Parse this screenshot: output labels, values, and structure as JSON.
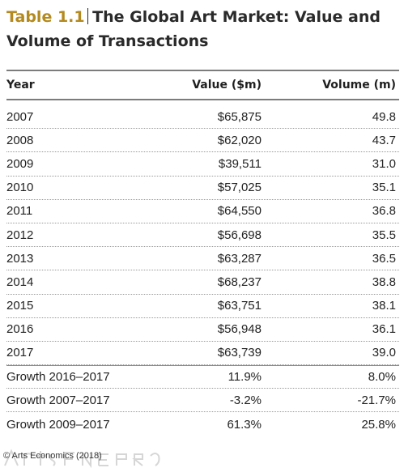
{
  "title": {
    "label": "Table 1.1",
    "text_line1": "The Global Art Market: Value and",
    "text_line2": "Volume of Transactions"
  },
  "columns": {
    "year": "Year",
    "value": "Value ($m)",
    "volume": "Volume (m)"
  },
  "rows": [
    {
      "year": "2007",
      "value": "$65,875",
      "volume": "49.8"
    },
    {
      "year": "2008",
      "value": "$62,020",
      "volume": "43.7"
    },
    {
      "year": "2009",
      "value": "$39,511",
      "volume": "31.0"
    },
    {
      "year": "2010",
      "value": "$57,025",
      "volume": "35.1"
    },
    {
      "year": "2011",
      "value": "$64,550",
      "volume": "36.8"
    },
    {
      "year": "2012",
      "value": "$56,698",
      "volume": "35.5"
    },
    {
      "year": "2013",
      "value": "$63,287",
      "volume": "36.5"
    },
    {
      "year": "2014",
      "value": "$68,237",
      "volume": "38.8"
    },
    {
      "year": "2015",
      "value": "$63,751",
      "volume": "38.1"
    },
    {
      "year": "2016",
      "value": "$56,948",
      "volume": "36.1"
    },
    {
      "year": "2017",
      "value": "$63,739",
      "volume": "39.0"
    }
  ],
  "growth_rows": [
    {
      "year": "Growth 2016–2017",
      "value": "11.9%",
      "volume": "8.0%"
    },
    {
      "year": "Growth 2007–2017",
      "value": "-3.2%",
      "volume": "-21.7%"
    },
    {
      "year": "Growth 2009–2017",
      "value": "61.3%",
      "volume": "25.8%"
    }
  ],
  "source": "© Arts Economics (2018)",
  "colors": {
    "label": "#b38a1f",
    "text": "#222222",
    "rule": "#7c7c7c"
  }
}
